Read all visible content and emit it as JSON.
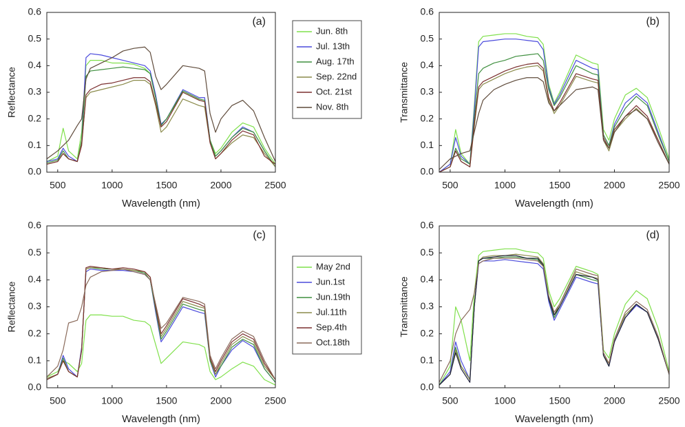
{
  "chart_data": [
    {
      "type": "line",
      "label": "(a)",
      "xlabel": "Wavelength (nm)",
      "ylabel": "Reflectance",
      "x": [
        400,
        500,
        550,
        600,
        680,
        720,
        760,
        800,
        900,
        1000,
        1100,
        1200,
        1300,
        1350,
        1400,
        1450,
        1500,
        1650,
        1800,
        1850,
        1900,
        1950,
        2000,
        2100,
        2200,
        2300,
        2400,
        2500
      ],
      "xlim": [
        400,
        2500
      ],
      "xticks": [
        500,
        1000,
        1500,
        2000,
        2500
      ],
      "ylim": [
        0,
        0.6
      ],
      "yticks": [
        {
          "value": 0,
          "label": "0.0"
        },
        0.1,
        0.2,
        0.3,
        0.4,
        0.5,
        0.6
      ],
      "series": [
        {
          "name": "Jun. 8th",
          "color": "#7fe04a",
          "values": [
            0.04,
            0.06,
            0.165,
            0.08,
            0.05,
            0.15,
            0.4,
            0.42,
            0.42,
            0.41,
            0.41,
            0.405,
            0.39,
            0.37,
            0.28,
            0.18,
            0.2,
            0.3,
            0.27,
            0.265,
            0.12,
            0.07,
            0.09,
            0.15,
            0.185,
            0.17,
            0.09,
            0.03
          ]
        },
        {
          "name": "Jul. 13th",
          "color": "#4a4adc",
          "values": [
            0.04,
            0.05,
            0.09,
            0.06,
            0.04,
            0.12,
            0.43,
            0.445,
            0.44,
            0.43,
            0.42,
            0.41,
            0.4,
            0.38,
            0.29,
            0.18,
            0.2,
            0.31,
            0.28,
            0.28,
            0.12,
            0.06,
            0.08,
            0.13,
            0.17,
            0.15,
            0.08,
            0.02
          ]
        },
        {
          "name": "Aug. 17th",
          "color": "#3f8f3f",
          "values": [
            0.035,
            0.045,
            0.08,
            0.05,
            0.04,
            0.12,
            0.36,
            0.38,
            0.385,
            0.39,
            0.395,
            0.39,
            0.385,
            0.37,
            0.28,
            0.175,
            0.2,
            0.305,
            0.275,
            0.27,
            0.12,
            0.06,
            0.08,
            0.13,
            0.165,
            0.15,
            0.08,
            0.02
          ]
        },
        {
          "name": "Sep. 22nd",
          "color": "#8a8a4a",
          "values": [
            0.03,
            0.04,
            0.07,
            0.05,
            0.04,
            0.11,
            0.28,
            0.3,
            0.31,
            0.32,
            0.33,
            0.345,
            0.345,
            0.33,
            0.25,
            0.15,
            0.17,
            0.275,
            0.25,
            0.245,
            0.11,
            0.05,
            0.07,
            0.11,
            0.14,
            0.13,
            0.07,
            0.02
          ]
        },
        {
          "name": "Oct. 21st",
          "color": "#7a2e2e",
          "values": [
            0.03,
            0.04,
            0.07,
            0.05,
            0.04,
            0.1,
            0.29,
            0.31,
            0.33,
            0.335,
            0.345,
            0.355,
            0.355,
            0.34,
            0.26,
            0.17,
            0.19,
            0.3,
            0.27,
            0.265,
            0.11,
            0.05,
            0.07,
            0.12,
            0.155,
            0.14,
            0.06,
            0.03
          ]
        },
        {
          "name": "Nov. 8th",
          "color": "#5e4a3a",
          "values": [
            0.05,
            0.08,
            0.1,
            0.12,
            0.175,
            0.2,
            0.35,
            0.39,
            0.41,
            0.43,
            0.455,
            0.465,
            0.47,
            0.45,
            0.36,
            0.31,
            0.33,
            0.4,
            0.39,
            0.38,
            0.22,
            0.15,
            0.2,
            0.25,
            0.27,
            0.23,
            0.13,
            0.04
          ]
        }
      ]
    },
    {
      "type": "line",
      "label": "(b)",
      "xlabel": "Wavelength (nm)",
      "ylabel": "Transmittance",
      "x": [
        400,
        500,
        550,
        600,
        680,
        720,
        760,
        800,
        900,
        1000,
        1100,
        1200,
        1300,
        1350,
        1400,
        1450,
        1500,
        1650,
        1800,
        1850,
        1900,
        1950,
        2000,
        2100,
        2200,
        2300,
        2400,
        2500
      ],
      "xlim": [
        400,
        2500
      ],
      "xticks": [
        500,
        1000,
        1500,
        2000,
        2500
      ],
      "ylim": [
        0,
        0.6
      ],
      "yticks": [
        {
          "value": 0,
          "label": "0.0"
        },
        0.1,
        0.2,
        0.3,
        0.4,
        0.5,
        0.6
      ],
      "series": [
        {
          "color": "#7fe04a",
          "values": [
            0,
            0.03,
            0.16,
            0.07,
            0.03,
            0.25,
            0.49,
            0.51,
            0.515,
            0.52,
            0.52,
            0.51,
            0.505,
            0.48,
            0.33,
            0.26,
            0.3,
            0.44,
            0.41,
            0.405,
            0.16,
            0.12,
            0.2,
            0.29,
            0.315,
            0.28,
            0.17,
            0.05
          ]
        },
        {
          "color": "#4a4adc",
          "values": [
            0,
            0.03,
            0.13,
            0.06,
            0.03,
            0.23,
            0.47,
            0.49,
            0.495,
            0.5,
            0.5,
            0.495,
            0.49,
            0.46,
            0.32,
            0.255,
            0.29,
            0.42,
            0.39,
            0.385,
            0.14,
            0.1,
            0.18,
            0.26,
            0.295,
            0.26,
            0.15,
            0.04
          ]
        },
        {
          "color": "#3f8f3f",
          "values": [
            0,
            0.02,
            0.09,
            0.05,
            0.03,
            0.2,
            0.37,
            0.39,
            0.41,
            0.42,
            0.435,
            0.44,
            0.445,
            0.42,
            0.31,
            0.25,
            0.28,
            0.4,
            0.37,
            0.365,
            0.14,
            0.1,
            0.17,
            0.24,
            0.285,
            0.25,
            0.14,
            0.04
          ]
        },
        {
          "color": "#8a8a4a",
          "values": [
            0,
            0.02,
            0.08,
            0.04,
            0.02,
            0.17,
            0.31,
            0.33,
            0.35,
            0.37,
            0.385,
            0.395,
            0.4,
            0.38,
            0.27,
            0.22,
            0.25,
            0.36,
            0.34,
            0.335,
            0.12,
            0.08,
            0.15,
            0.2,
            0.24,
            0.2,
            0.12,
            0.03
          ]
        },
        {
          "color": "#7a2e2e",
          "values": [
            0,
            0.02,
            0.08,
            0.04,
            0.02,
            0.18,
            0.32,
            0.34,
            0.36,
            0.38,
            0.395,
            0.405,
            0.41,
            0.39,
            0.28,
            0.23,
            0.26,
            0.37,
            0.35,
            0.345,
            0.13,
            0.09,
            0.16,
            0.21,
            0.25,
            0.21,
            0.12,
            0.03
          ]
        },
        {
          "color": "#5e4a3a",
          "values": [
            0.01,
            0.05,
            0.06,
            0.07,
            0.08,
            0.15,
            0.22,
            0.27,
            0.31,
            0.33,
            0.345,
            0.355,
            0.355,
            0.34,
            0.26,
            0.23,
            0.25,
            0.31,
            0.32,
            0.31,
            0.12,
            0.09,
            0.15,
            0.21,
            0.235,
            0.2,
            0.11,
            0.03
          ]
        }
      ]
    },
    {
      "type": "line",
      "label": "(c)",
      "xlabel": "Wavelength (nm)",
      "ylabel": "Reflectance",
      "x": [
        400,
        500,
        550,
        600,
        680,
        720,
        760,
        800,
        900,
        1000,
        1100,
        1200,
        1300,
        1350,
        1400,
        1450,
        1500,
        1650,
        1800,
        1850,
        1900,
        1950,
        2000,
        2100,
        2200,
        2300,
        2400,
        2500
      ],
      "xlim": [
        400,
        2500
      ],
      "xticks": [
        500,
        1000,
        1500,
        2000,
        2500
      ],
      "ylim": [
        0,
        0.6
      ],
      "yticks": [
        {
          "value": 0,
          "label": "0.0"
        },
        0.1,
        0.2,
        0.3,
        0.4,
        0.5,
        0.6
      ],
      "series": [
        {
          "name": "May 2nd",
          "color": "#7fe04a",
          "values": [
            0.04,
            0.06,
            0.1,
            0.09,
            0.06,
            0.09,
            0.25,
            0.27,
            0.27,
            0.265,
            0.265,
            0.25,
            0.245,
            0.23,
            0.16,
            0.09,
            0.11,
            0.17,
            0.16,
            0.15,
            0.06,
            0.03,
            0.04,
            0.07,
            0.095,
            0.08,
            0.03,
            0.01
          ]
        },
        {
          "name": "Jun.1st",
          "color": "#4a4adc",
          "values": [
            0.03,
            0.05,
            0.12,
            0.07,
            0.04,
            0.15,
            0.43,
            0.44,
            0.435,
            0.435,
            0.435,
            0.43,
            0.42,
            0.4,
            0.28,
            0.17,
            0.2,
            0.3,
            0.28,
            0.275,
            0.1,
            0.04,
            0.08,
            0.14,
            0.175,
            0.15,
            0.07,
            0.02
          ]
        },
        {
          "name": "Jun.19th",
          "color": "#3f8f3f",
          "values": [
            0.03,
            0.05,
            0.11,
            0.06,
            0.04,
            0.14,
            0.44,
            0.445,
            0.44,
            0.44,
            0.44,
            0.435,
            0.425,
            0.4,
            0.29,
            0.18,
            0.21,
            0.31,
            0.29,
            0.285,
            0.1,
            0.05,
            0.08,
            0.15,
            0.18,
            0.16,
            0.07,
            0.02
          ]
        },
        {
          "name": "Jul.11th",
          "color": "#8a8a4a",
          "values": [
            0.035,
            0.05,
            0.1,
            0.06,
            0.04,
            0.14,
            0.44,
            0.445,
            0.445,
            0.44,
            0.44,
            0.435,
            0.43,
            0.41,
            0.3,
            0.19,
            0.22,
            0.32,
            0.3,
            0.295,
            0.11,
            0.05,
            0.09,
            0.16,
            0.19,
            0.17,
            0.08,
            0.03
          ]
        },
        {
          "name": "Sep.4th",
          "color": "#7a2e2e",
          "values": [
            0.03,
            0.05,
            0.1,
            0.06,
            0.04,
            0.14,
            0.445,
            0.45,
            0.445,
            0.44,
            0.445,
            0.44,
            0.43,
            0.41,
            0.3,
            0.2,
            0.23,
            0.33,
            0.31,
            0.3,
            0.11,
            0.06,
            0.1,
            0.17,
            0.2,
            0.18,
            0.09,
            0.03
          ]
        },
        {
          "name": "Oct.18th",
          "color": "#8a6a5a",
          "values": [
            0.04,
            0.08,
            0.14,
            0.24,
            0.25,
            0.3,
            0.38,
            0.41,
            0.43,
            0.435,
            0.44,
            0.43,
            0.42,
            0.4,
            0.31,
            0.22,
            0.24,
            0.335,
            0.32,
            0.31,
            0.12,
            0.07,
            0.11,
            0.18,
            0.21,
            0.19,
            0.1,
            0.03
          ]
        }
      ]
    },
    {
      "type": "line",
      "label": "(d)",
      "xlabel": "Wavelength (nm)",
      "ylabel": "Transmittance",
      "x": [
        400,
        500,
        550,
        600,
        680,
        720,
        760,
        800,
        900,
        1000,
        1100,
        1200,
        1300,
        1350,
        1400,
        1450,
        1500,
        1650,
        1800,
        1850,
        1900,
        1950,
        2000,
        2100,
        2200,
        2300,
        2400,
        2500
      ],
      "xlim": [
        400,
        2500
      ],
      "xticks": [
        500,
        1000,
        1500,
        2000,
        2500
      ],
      "ylim": [
        0,
        0.6
      ],
      "yticks": [
        {
          "value": 0,
          "label": "0.0"
        },
        0.1,
        0.2,
        0.3,
        0.4,
        0.5,
        0.6
      ],
      "series": [
        {
          "color": "#7fe04a",
          "values": [
            0.01,
            0.08,
            0.3,
            0.25,
            0.1,
            0.35,
            0.49,
            0.505,
            0.51,
            0.515,
            0.515,
            0.505,
            0.5,
            0.48,
            0.36,
            0.3,
            0.33,
            0.45,
            0.43,
            0.42,
            0.14,
            0.11,
            0.2,
            0.31,
            0.36,
            0.33,
            0.22,
            0.06
          ]
        },
        {
          "color": "#4a4adc",
          "values": [
            0.01,
            0.06,
            0.17,
            0.1,
            0.03,
            0.3,
            0.46,
            0.47,
            0.47,
            0.475,
            0.47,
            0.465,
            0.46,
            0.44,
            0.32,
            0.25,
            0.29,
            0.41,
            0.39,
            0.385,
            0.12,
            0.08,
            0.17,
            0.26,
            0.305,
            0.28,
            0.18,
            0.05
          ]
        },
        {
          "color": "#3f8f3f",
          "values": [
            0.01,
            0.05,
            0.15,
            0.08,
            0.03,
            0.3,
            0.47,
            0.48,
            0.48,
            0.485,
            0.485,
            0.48,
            0.475,
            0.45,
            0.33,
            0.26,
            0.3,
            0.42,
            0.4,
            0.395,
            0.12,
            0.08,
            0.18,
            0.27,
            0.31,
            0.28,
            0.18,
            0.05
          ]
        },
        {
          "color": "#8a8a4a",
          "values": [
            0.01,
            0.05,
            0.14,
            0.08,
            0.03,
            0.3,
            0.47,
            0.485,
            0.49,
            0.49,
            0.495,
            0.49,
            0.485,
            0.46,
            0.34,
            0.27,
            0.31,
            0.43,
            0.41,
            0.405,
            0.12,
            0.09,
            0.18,
            0.27,
            0.31,
            0.28,
            0.18,
            0.05
          ]
        },
        {
          "color": "#1e1e3a",
          "values": [
            0.01,
            0.05,
            0.13,
            0.07,
            0.02,
            0.3,
            0.47,
            0.48,
            0.485,
            0.49,
            0.49,
            0.48,
            0.48,
            0.455,
            0.33,
            0.27,
            0.3,
            0.42,
            0.41,
            0.4,
            0.12,
            0.08,
            0.17,
            0.26,
            0.31,
            0.28,
            0.18,
            0.05
          ]
        },
        {
          "color": "#8a6a5a",
          "values": [
            0.02,
            0.1,
            0.2,
            0.25,
            0.29,
            0.35,
            0.46,
            0.47,
            0.48,
            0.48,
            0.48,
            0.475,
            0.47,
            0.45,
            0.34,
            0.28,
            0.31,
            0.44,
            0.42,
            0.415,
            0.13,
            0.09,
            0.18,
            0.28,
            0.32,
            0.29,
            0.19,
            0.05
          ]
        }
      ]
    }
  ]
}
